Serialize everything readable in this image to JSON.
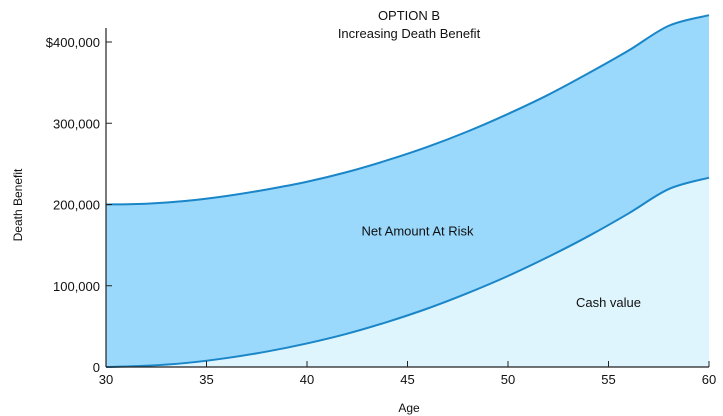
{
  "chart_data": {
    "type": "area",
    "title": "OPTION B",
    "subtitle": "Increasing Death Benefit",
    "xlabel": "Age",
    "ylabel": "Death Benefit",
    "xlim": [
      30,
      60
    ],
    "ylim": [
      0,
      430000
    ],
    "x_ticks": [
      30,
      35,
      40,
      45,
      50,
      55,
      60
    ],
    "x_tick_labels": [
      "30",
      "35",
      "40",
      "45",
      "50",
      "55",
      "60"
    ],
    "y_ticks": [
      0,
      100000,
      200000,
      300000,
      400000
    ],
    "y_tick_labels": [
      "0",
      "100,000",
      "200,000",
      "300,000",
      "$400,000"
    ],
    "grid": false,
    "series": [
      {
        "name": "Death Benefit",
        "x": [
          30,
          32,
          34,
          36,
          38,
          40,
          42,
          44,
          46,
          48,
          50,
          52,
          54,
          56,
          58,
          60
        ],
        "values": [
          200000,
          201000,
          204500,
          210500,
          218500,
          228000,
          240000,
          254500,
          271000,
          290000,
          311500,
          335000,
          361500,
          389500,
          420000,
          433000
        ]
      },
      {
        "name": "Cash value",
        "x": [
          30,
          32,
          34,
          36,
          38,
          40,
          42,
          44,
          46,
          48,
          50,
          52,
          54,
          56,
          58,
          60
        ],
        "values": [
          0,
          1500,
          5000,
          11000,
          19000,
          29000,
          41000,
          55500,
          72000,
          91000,
          112000,
          135500,
          161000,
          189000,
          219000,
          233000
        ]
      }
    ],
    "annotations": [
      {
        "text": "Net Amount At Risk",
        "x": 45.5,
        "y": 168000
      },
      {
        "text": "Cash value",
        "x": 55,
        "y": 80000
      }
    ],
    "colors": {
      "net_amount_fill": "#9ad9fb",
      "cash_value_fill": "#dff5fe",
      "line": "#1a86c8",
      "axis": "#222222"
    }
  }
}
